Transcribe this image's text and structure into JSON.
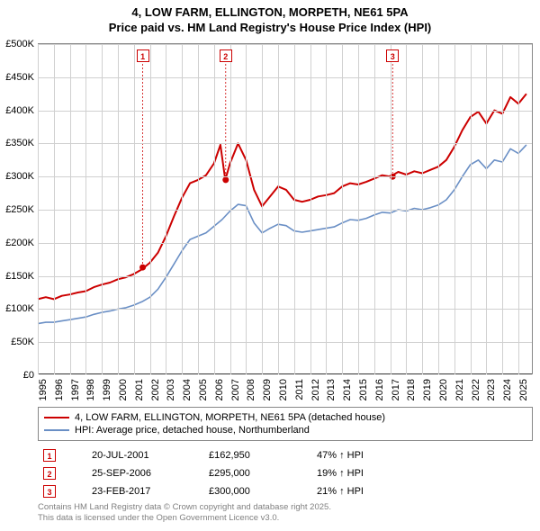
{
  "title_line1": "4, LOW FARM, ELLINGTON, MORPETH, NE61 5PA",
  "title_line2": "Price paid vs. HM Land Registry's House Price Index (HPI)",
  "chart": {
    "type": "line",
    "background_color": "#ffffff",
    "grid_color": "#d0d0d0",
    "axis_color": "#333333",
    "x_range": [
      1995,
      2025.9
    ],
    "y_range": [
      0,
      500000
    ],
    "y_ticks": [
      0,
      50000,
      100000,
      150000,
      200000,
      250000,
      300000,
      350000,
      400000,
      450000,
      500000
    ],
    "y_tick_labels": [
      "£0",
      "£50K",
      "£100K",
      "£150K",
      "£200K",
      "£250K",
      "£300K",
      "£350K",
      "£400K",
      "£450K",
      "£500K"
    ],
    "x_ticks": [
      1995,
      1996,
      1997,
      1998,
      1999,
      2000,
      2001,
      2002,
      2003,
      2004,
      2005,
      2006,
      2007,
      2008,
      2009,
      2010,
      2011,
      2012,
      2013,
      2014,
      2015,
      2016,
      2017,
      2018,
      2019,
      2020,
      2021,
      2022,
      2023,
      2024,
      2025
    ],
    "series": [
      {
        "name": "4, LOW FARM, ELLINGTON, MORPETH, NE61 5PA (detached house)",
        "color": "#cc0000",
        "line_width": 2,
        "data": [
          [
            1995.0,
            115000
          ],
          [
            1995.5,
            118000
          ],
          [
            1996.0,
            115000
          ],
          [
            1996.5,
            120000
          ],
          [
            1997.0,
            122000
          ],
          [
            1997.5,
            125000
          ],
          [
            1998.0,
            127000
          ],
          [
            1998.5,
            133000
          ],
          [
            1999.0,
            137000
          ],
          [
            1999.5,
            140000
          ],
          [
            2000.0,
            145000
          ],
          [
            2000.5,
            148000
          ],
          [
            2001.0,
            153000
          ],
          [
            2001.5,
            160000
          ],
          [
            2002.0,
            170000
          ],
          [
            2002.5,
            185000
          ],
          [
            2003.0,
            210000
          ],
          [
            2003.5,
            240000
          ],
          [
            2004.0,
            268000
          ],
          [
            2004.5,
            290000
          ],
          [
            2005.0,
            295000
          ],
          [
            2005.5,
            302000
          ],
          [
            2006.0,
            320000
          ],
          [
            2006.4,
            348000
          ],
          [
            2006.7,
            295000
          ],
          [
            2007.0,
            320000
          ],
          [
            2007.5,
            350000
          ],
          [
            2008.0,
            325000
          ],
          [
            2008.5,
            280000
          ],
          [
            2009.0,
            255000
          ],
          [
            2009.5,
            270000
          ],
          [
            2010.0,
            285000
          ],
          [
            2010.5,
            280000
          ],
          [
            2011.0,
            265000
          ],
          [
            2011.5,
            262000
          ],
          [
            2012.0,
            265000
          ],
          [
            2012.5,
            270000
          ],
          [
            2013.0,
            272000
          ],
          [
            2013.5,
            275000
          ],
          [
            2014.0,
            285000
          ],
          [
            2014.5,
            290000
          ],
          [
            2015.0,
            288000
          ],
          [
            2015.5,
            292000
          ],
          [
            2016.0,
            297000
          ],
          [
            2016.5,
            302000
          ],
          [
            2017.0,
            300000
          ],
          [
            2017.5,
            307000
          ],
          [
            2018.0,
            303000
          ],
          [
            2018.5,
            308000
          ],
          [
            2019.0,
            305000
          ],
          [
            2019.5,
            310000
          ],
          [
            2020.0,
            315000
          ],
          [
            2020.5,
            325000
          ],
          [
            2021.0,
            345000
          ],
          [
            2021.5,
            370000
          ],
          [
            2022.0,
            390000
          ],
          [
            2022.5,
            398000
          ],
          [
            2023.0,
            380000
          ],
          [
            2023.5,
            400000
          ],
          [
            2024.0,
            395000
          ],
          [
            2024.5,
            420000
          ],
          [
            2025.0,
            410000
          ],
          [
            2025.5,
            425000
          ]
        ]
      },
      {
        "name": "HPI: Average price, detached house, Northumberland",
        "color": "#6a8fc5",
        "line_width": 1.6,
        "data": [
          [
            1995.0,
            78000
          ],
          [
            1995.5,
            80000
          ],
          [
            1996.0,
            80000
          ],
          [
            1996.5,
            82000
          ],
          [
            1997.0,
            84000
          ],
          [
            1997.5,
            86000
          ],
          [
            1998.0,
            88000
          ],
          [
            1998.5,
            92000
          ],
          [
            1999.0,
            95000
          ],
          [
            1999.5,
            97000
          ],
          [
            2000.0,
            100000
          ],
          [
            2000.5,
            102000
          ],
          [
            2001.0,
            106000
          ],
          [
            2001.5,
            111000
          ],
          [
            2002.0,
            118000
          ],
          [
            2002.5,
            130000
          ],
          [
            2003.0,
            148000
          ],
          [
            2003.5,
            168000
          ],
          [
            2004.0,
            188000
          ],
          [
            2004.5,
            205000
          ],
          [
            2005.0,
            210000
          ],
          [
            2005.5,
            215000
          ],
          [
            2006.0,
            225000
          ],
          [
            2006.5,
            235000
          ],
          [
            2007.0,
            248000
          ],
          [
            2007.5,
            258000
          ],
          [
            2008.0,
            256000
          ],
          [
            2008.5,
            230000
          ],
          [
            2009.0,
            215000
          ],
          [
            2009.5,
            222000
          ],
          [
            2010.0,
            228000
          ],
          [
            2010.5,
            226000
          ],
          [
            2011.0,
            218000
          ],
          [
            2011.5,
            216000
          ],
          [
            2012.0,
            218000
          ],
          [
            2012.5,
            220000
          ],
          [
            2013.0,
            222000
          ],
          [
            2013.5,
            224000
          ],
          [
            2014.0,
            230000
          ],
          [
            2014.5,
            235000
          ],
          [
            2015.0,
            234000
          ],
          [
            2015.5,
            237000
          ],
          [
            2016.0,
            242000
          ],
          [
            2016.5,
            246000
          ],
          [
            2017.0,
            245000
          ],
          [
            2017.5,
            250000
          ],
          [
            2018.0,
            248000
          ],
          [
            2018.5,
            252000
          ],
          [
            2019.0,
            250000
          ],
          [
            2019.5,
            253000
          ],
          [
            2020.0,
            257000
          ],
          [
            2020.5,
            265000
          ],
          [
            2021.0,
            280000
          ],
          [
            2021.5,
            300000
          ],
          [
            2022.0,
            318000
          ],
          [
            2022.5,
            325000
          ],
          [
            2023.0,
            312000
          ],
          [
            2023.5,
            325000
          ],
          [
            2024.0,
            322000
          ],
          [
            2024.5,
            342000
          ],
          [
            2025.0,
            335000
          ],
          [
            2025.5,
            348000
          ]
        ]
      }
    ],
    "markers": [
      {
        "n": "1",
        "x": 2001.55,
        "y": 162950,
        "point_color": "#cc0000"
      },
      {
        "n": "2",
        "x": 2006.73,
        "y": 295000,
        "point_color": "#cc0000"
      },
      {
        "n": "3",
        "x": 2017.15,
        "y": 300000,
        "point_color": "#cc0000"
      }
    ]
  },
  "legend": {
    "items": [
      {
        "label": "4, LOW FARM, ELLINGTON, MORPETH, NE61 5PA (detached house)",
        "color": "#cc0000"
      },
      {
        "label": "HPI: Average price, detached house, Northumberland",
        "color": "#6a8fc5"
      }
    ]
  },
  "info_rows": [
    {
      "n": "1",
      "date": "20-JUL-2001",
      "price": "£162,950",
      "hpi": "47% ↑ HPI"
    },
    {
      "n": "2",
      "date": "25-SEP-2006",
      "price": "£295,000",
      "hpi": "19% ↑ HPI"
    },
    {
      "n": "3",
      "date": "23-FEB-2017",
      "price": "£300,000",
      "hpi": "21% ↑ HPI"
    }
  ],
  "footer_line1": "Contains HM Land Registry data © Crown copyright and database right 2025.",
  "footer_line2": "This data is licensed under the Open Government Licence v3.0."
}
